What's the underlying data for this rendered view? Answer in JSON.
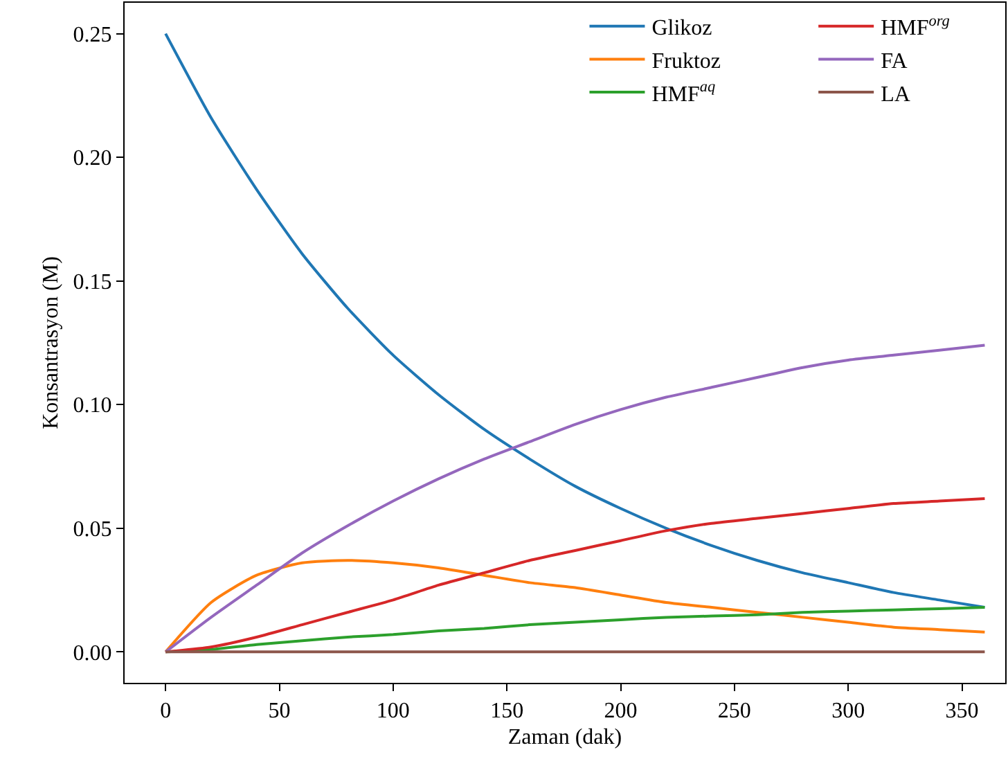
{
  "chart_data": {
    "type": "line",
    "xlabel": "Zaman (dak)",
    "ylabel": "Konsantrasyon (M)",
    "x": [
      0,
      20,
      40,
      60,
      80,
      100,
      120,
      140,
      160,
      180,
      200,
      220,
      240,
      260,
      280,
      300,
      320,
      340,
      360
    ],
    "series": [
      {
        "name": "Glikoz",
        "color": "#1f77b4",
        "values": [
          0.25,
          0.216,
          0.187,
          0.161,
          0.139,
          0.12,
          0.104,
          0.09,
          0.078,
          0.067,
          0.058,
          0.05,
          0.043,
          0.037,
          0.032,
          0.028,
          0.024,
          0.021,
          0.018
        ]
      },
      {
        "name": "Fruktoz",
        "color": "#ff7f0e",
        "values": [
          0,
          0.02,
          0.031,
          0.036,
          0.037,
          0.036,
          0.034,
          0.031,
          0.028,
          0.026,
          0.023,
          0.02,
          0.018,
          0.016,
          0.014,
          0.012,
          0.01,
          0.009,
          0.008
        ]
      },
      {
        "name": "HMF$^{aq}$",
        "color": "#2ca02c",
        "values": [
          0,
          0.001,
          0.003,
          0.0045,
          0.006,
          0.007,
          0.0085,
          0.0095,
          0.011,
          0.012,
          0.013,
          0.014,
          0.0145,
          0.015,
          0.016,
          0.0165,
          0.017,
          0.0175,
          0.018
        ]
      },
      {
        "name": "HMF$^{org}$",
        "color": "#d62728",
        "values": [
          0,
          0.002,
          0.006,
          0.011,
          0.016,
          0.021,
          0.027,
          0.032,
          0.037,
          0.041,
          0.045,
          0.049,
          0.052,
          0.054,
          0.056,
          0.058,
          0.06,
          0.061,
          0.062
        ]
      },
      {
        "name": "FA",
        "color": "#9467bd",
        "values": [
          0,
          0.014,
          0.027,
          0.04,
          0.051,
          0.061,
          0.07,
          0.078,
          0.085,
          0.092,
          0.098,
          0.103,
          0.107,
          0.111,
          0.115,
          0.118,
          0.12,
          0.122,
          0.124
        ]
      },
      {
        "name": "LA",
        "color": "#8c564b",
        "values": [
          0,
          0,
          0,
          0,
          0,
          0,
          0,
          0,
          0,
          0,
          0,
          0,
          0,
          0,
          0,
          0,
          0,
          0,
          0
        ]
      }
    ],
    "xlim": [
      -18,
      369
    ],
    "xticks": [
      0,
      50,
      100,
      150,
      200,
      250,
      300,
      350
    ],
    "ylim": [
      -0.0125,
      0.2625
    ],
    "yticks": [
      {
        "value": 0,
        "label": "0.00"
      },
      {
        "value": 0.05,
        "label": "0.05"
      },
      {
        "value": 0.1,
        "label": "0.10"
      },
      {
        "value": 0.15,
        "label": "0.15"
      },
      {
        "value": 0.2,
        "label": "0.20"
      },
      {
        "value": 0.25,
        "label": "0.25"
      }
    ],
    "legend": "top right",
    "marker": "none",
    "line_style": "solid"
  }
}
